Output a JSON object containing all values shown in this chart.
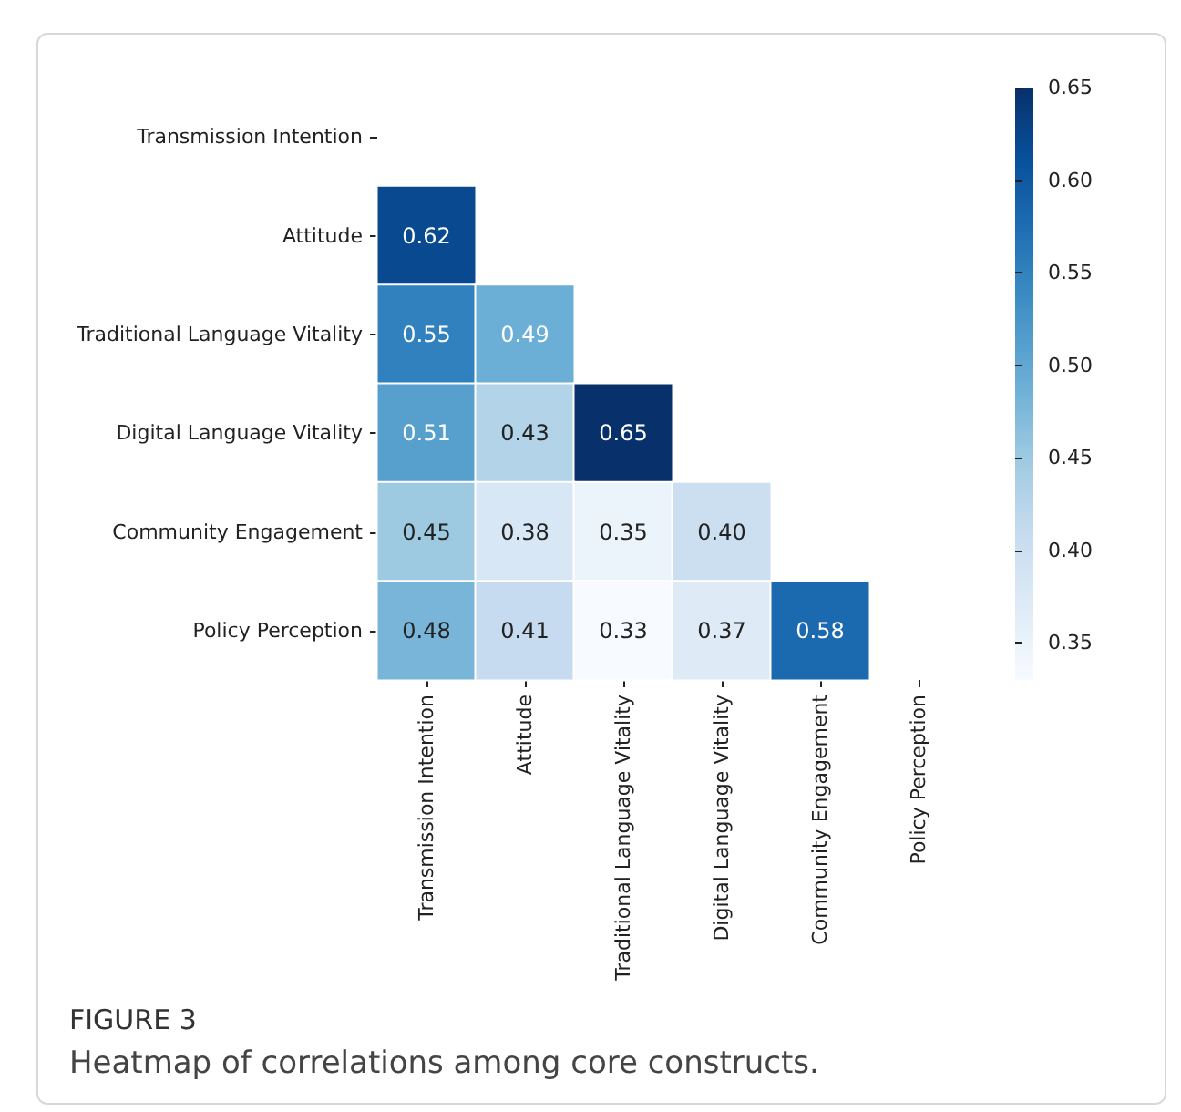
{
  "chart_data": {
    "type": "heatmap",
    "categories": [
      "Transmission Intention",
      "Attitude",
      "Traditional Language Vitality",
      "Digital Language Vitality",
      "Community Engagement",
      "Policy Perception"
    ],
    "y_categories": [
      "Transmission Intention",
      "Attitude",
      "Traditional Language Vitality",
      "Digital Language Vitality",
      "Community Engagement",
      "Policy Perception"
    ],
    "cells": [
      [
        null,
        null,
        null,
        null,
        null,
        null
      ],
      [
        0.62,
        null,
        null,
        null,
        null,
        null
      ],
      [
        0.55,
        0.49,
        null,
        null,
        null,
        null
      ],
      [
        0.51,
        0.43,
        0.65,
        null,
        null,
        null
      ],
      [
        0.45,
        0.38,
        0.35,
        0.4,
        null,
        null
      ],
      [
        0.48,
        0.41,
        0.33,
        0.37,
        0.58,
        null
      ]
    ],
    "clim": [
      0.33,
      0.65
    ],
    "data_labels": true,
    "cell_labels": [
      [
        null,
        null,
        null,
        null,
        null,
        null
      ],
      [
        "0.62",
        null,
        null,
        null,
        null,
        null
      ],
      [
        "0.55",
        "0.49",
        null,
        null,
        null,
        null
      ],
      [
        "0.51",
        "0.43",
        "0.65",
        null,
        null,
        null
      ],
      [
        "0.45",
        "0.38",
        "0.35",
        "0.40",
        null,
        null
      ],
      [
        "0.48",
        "0.41",
        "0.33",
        "0.37",
        "0.58",
        null
      ]
    ],
    "cticks": [
      {
        "value": 0.35,
        "label": "0.35"
      },
      {
        "value": 0.4,
        "label": "0.40"
      },
      {
        "value": 0.45,
        "label": "0.45"
      },
      {
        "value": 0.5,
        "label": "0.50"
      },
      {
        "value": 0.55,
        "label": "0.55"
      },
      {
        "value": 0.6,
        "label": "0.60"
      },
      {
        "value": 0.65,
        "label": "0.65"
      }
    ],
    "annotations": [
      "FIGURE 3",
      "Heatmap of correlations among core constructs."
    ]
  }
}
